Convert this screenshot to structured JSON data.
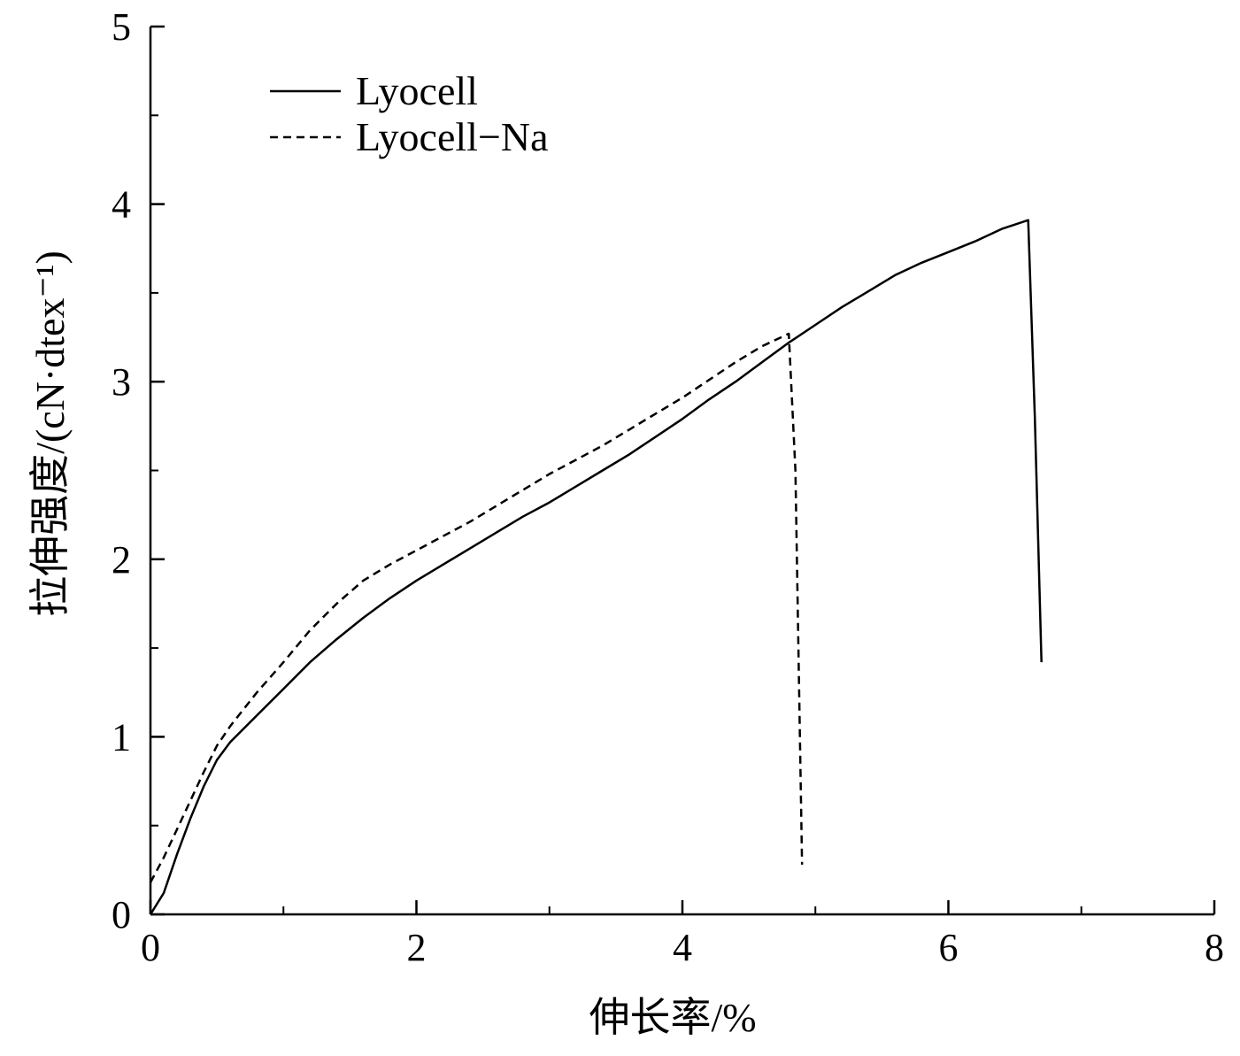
{
  "chart_data": {
    "type": "line",
    "title": "",
    "xlabel": "伸长率/%",
    "ylabel": "拉伸强度/(cN·dtex⁻¹)",
    "xlim": [
      0,
      8
    ],
    "ylim": [
      0,
      5
    ],
    "x_ticks": [
      "0",
      "2",
      "4",
      "6",
      "8"
    ],
    "y_ticks": [
      "0",
      "1",
      "2",
      "3",
      "4",
      "5"
    ],
    "x_minor_ticks": [
      1,
      3,
      5,
      7
    ],
    "y_minor_ticks": [
      0.5,
      1.5,
      2.5,
      3.5,
      4.5
    ],
    "grid": false,
    "legend_position": "top-left",
    "series": [
      {
        "name": "Lyocell",
        "style": "solid",
        "color": "#000000",
        "points": [
          [
            0.0,
            0.0
          ],
          [
            0.1,
            0.12
          ],
          [
            0.2,
            0.34
          ],
          [
            0.3,
            0.54
          ],
          [
            0.4,
            0.72
          ],
          [
            0.5,
            0.87
          ],
          [
            0.6,
            0.97
          ],
          [
            0.8,
            1.12
          ],
          [
            1.0,
            1.27
          ],
          [
            1.2,
            1.42
          ],
          [
            1.4,
            1.55
          ],
          [
            1.6,
            1.67
          ],
          [
            1.8,
            1.78
          ],
          [
            2.0,
            1.88
          ],
          [
            2.2,
            1.97
          ],
          [
            2.4,
            2.06
          ],
          [
            2.6,
            2.15
          ],
          [
            2.8,
            2.24
          ],
          [
            3.0,
            2.32
          ],
          [
            3.2,
            2.41
          ],
          [
            3.4,
            2.5
          ],
          [
            3.6,
            2.59
          ],
          [
            3.8,
            2.69
          ],
          [
            4.0,
            2.79
          ],
          [
            4.2,
            2.9
          ],
          [
            4.4,
            3.0
          ],
          [
            4.6,
            3.11
          ],
          [
            4.8,
            3.22
          ],
          [
            5.0,
            3.32
          ],
          [
            5.2,
            3.42
          ],
          [
            5.4,
            3.51
          ],
          [
            5.6,
            3.6
          ],
          [
            5.8,
            3.67
          ],
          [
            6.0,
            3.73
          ],
          [
            6.2,
            3.79
          ],
          [
            6.4,
            3.86
          ],
          [
            6.6,
            3.91
          ],
          [
            6.65,
            2.8
          ],
          [
            6.7,
            1.42
          ]
        ]
      },
      {
        "name": "Lyocell−Na",
        "style": "dashed",
        "color": "#000000",
        "points": [
          [
            0.0,
            0.18
          ],
          [
            0.1,
            0.32
          ],
          [
            0.2,
            0.48
          ],
          [
            0.3,
            0.64
          ],
          [
            0.4,
            0.8
          ],
          [
            0.5,
            0.95
          ],
          [
            0.6,
            1.06
          ],
          [
            0.8,
            1.25
          ],
          [
            1.0,
            1.42
          ],
          [
            1.2,
            1.6
          ],
          [
            1.4,
            1.75
          ],
          [
            1.6,
            1.88
          ],
          [
            1.8,
            1.97
          ],
          [
            2.0,
            2.05
          ],
          [
            2.2,
            2.13
          ],
          [
            2.4,
            2.21
          ],
          [
            2.6,
            2.3
          ],
          [
            2.8,
            2.39
          ],
          [
            3.0,
            2.48
          ],
          [
            3.2,
            2.56
          ],
          [
            3.4,
            2.64
          ],
          [
            3.6,
            2.73
          ],
          [
            3.8,
            2.82
          ],
          [
            4.0,
            2.91
          ],
          [
            4.2,
            3.01
          ],
          [
            4.4,
            3.11
          ],
          [
            4.6,
            3.2
          ],
          [
            4.8,
            3.27
          ],
          [
            4.85,
            2.5
          ],
          [
            4.9,
            0.28
          ]
        ]
      }
    ]
  }
}
